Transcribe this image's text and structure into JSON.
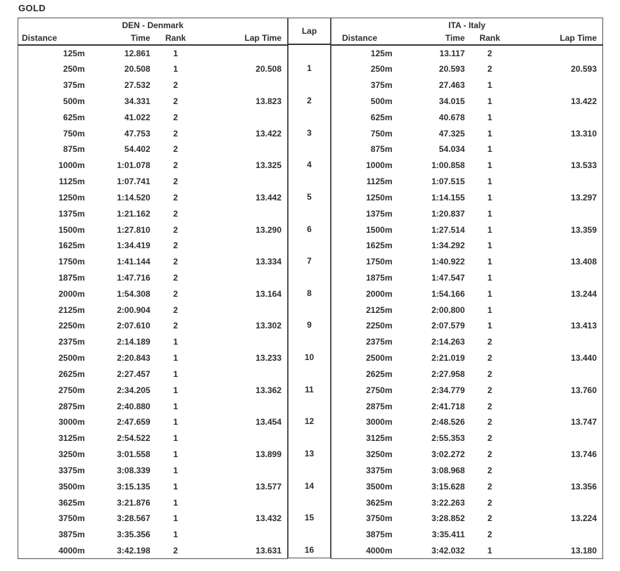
{
  "title": "GOLD",
  "left_team": {
    "name": "DEN - Denmark"
  },
  "right_team": {
    "name": "ITA - Italy"
  },
  "lap_header": "Lap",
  "columns": [
    "Distance",
    "Time",
    "Rank",
    "Lap Time"
  ],
  "rows": [
    {
      "lap": "",
      "den": [
        "125m",
        "12.861",
        "1",
        ""
      ],
      "ita": [
        "125m",
        "13.117",
        "2",
        ""
      ]
    },
    {
      "lap": "1",
      "den": [
        "250m",
        "20.508",
        "1",
        "20.508"
      ],
      "ita": [
        "250m",
        "20.593",
        "2",
        "20.593"
      ]
    },
    {
      "lap": "",
      "den": [
        "375m",
        "27.532",
        "2",
        ""
      ],
      "ita": [
        "375m",
        "27.463",
        "1",
        ""
      ]
    },
    {
      "lap": "2",
      "den": [
        "500m",
        "34.331",
        "2",
        "13.823"
      ],
      "ita": [
        "500m",
        "34.015",
        "1",
        "13.422"
      ]
    },
    {
      "lap": "",
      "den": [
        "625m",
        "41.022",
        "2",
        ""
      ],
      "ita": [
        "625m",
        "40.678",
        "1",
        ""
      ]
    },
    {
      "lap": "3",
      "den": [
        "750m",
        "47.753",
        "2",
        "13.422"
      ],
      "ita": [
        "750m",
        "47.325",
        "1",
        "13.310"
      ]
    },
    {
      "lap": "",
      "den": [
        "875m",
        "54.402",
        "2",
        ""
      ],
      "ita": [
        "875m",
        "54.034",
        "1",
        ""
      ]
    },
    {
      "lap": "4",
      "den": [
        "1000m",
        "1:01.078",
        "2",
        "13.325"
      ],
      "ita": [
        "1000m",
        "1:00.858",
        "1",
        "13.533"
      ]
    },
    {
      "lap": "",
      "den": [
        "1125m",
        "1:07.741",
        "2",
        ""
      ],
      "ita": [
        "1125m",
        "1:07.515",
        "1",
        ""
      ]
    },
    {
      "lap": "5",
      "den": [
        "1250m",
        "1:14.520",
        "2",
        "13.442"
      ],
      "ita": [
        "1250m",
        "1:14.155",
        "1",
        "13.297"
      ]
    },
    {
      "lap": "",
      "den": [
        "1375m",
        "1:21.162",
        "2",
        ""
      ],
      "ita": [
        "1375m",
        "1:20.837",
        "1",
        ""
      ]
    },
    {
      "lap": "6",
      "den": [
        "1500m",
        "1:27.810",
        "2",
        "13.290"
      ],
      "ita": [
        "1500m",
        "1:27.514",
        "1",
        "13.359"
      ]
    },
    {
      "lap": "",
      "den": [
        "1625m",
        "1:34.419",
        "2",
        ""
      ],
      "ita": [
        "1625m",
        "1:34.292",
        "1",
        ""
      ]
    },
    {
      "lap": "7",
      "den": [
        "1750m",
        "1:41.144",
        "2",
        "13.334"
      ],
      "ita": [
        "1750m",
        "1:40.922",
        "1",
        "13.408"
      ]
    },
    {
      "lap": "",
      "den": [
        "1875m",
        "1:47.716",
        "2",
        ""
      ],
      "ita": [
        "1875m",
        "1:47.547",
        "1",
        ""
      ]
    },
    {
      "lap": "8",
      "den": [
        "2000m",
        "1:54.308",
        "2",
        "13.164"
      ],
      "ita": [
        "2000m",
        "1:54.166",
        "1",
        "13.244"
      ]
    },
    {
      "lap": "",
      "den": [
        "2125m",
        "2:00.904",
        "2",
        ""
      ],
      "ita": [
        "2125m",
        "2:00.800",
        "1",
        ""
      ]
    },
    {
      "lap": "9",
      "den": [
        "2250m",
        "2:07.610",
        "2",
        "13.302"
      ],
      "ita": [
        "2250m",
        "2:07.579",
        "1",
        "13.413"
      ]
    },
    {
      "lap": "",
      "den": [
        "2375m",
        "2:14.189",
        "1",
        ""
      ],
      "ita": [
        "2375m",
        "2:14.263",
        "2",
        ""
      ]
    },
    {
      "lap": "10",
      "den": [
        "2500m",
        "2:20.843",
        "1",
        "13.233"
      ],
      "ita": [
        "2500m",
        "2:21.019",
        "2",
        "13.440"
      ]
    },
    {
      "lap": "",
      "den": [
        "2625m",
        "2:27.457",
        "1",
        ""
      ],
      "ita": [
        "2625m",
        "2:27.958",
        "2",
        ""
      ]
    },
    {
      "lap": "11",
      "den": [
        "2750m",
        "2:34.205",
        "1",
        "13.362"
      ],
      "ita": [
        "2750m",
        "2:34.779",
        "2",
        "13.760"
      ]
    },
    {
      "lap": "",
      "den": [
        "2875m",
        "2:40.880",
        "1",
        ""
      ],
      "ita": [
        "2875m",
        "2:41.718",
        "2",
        ""
      ]
    },
    {
      "lap": "12",
      "den": [
        "3000m",
        "2:47.659",
        "1",
        "13.454"
      ],
      "ita": [
        "3000m",
        "2:48.526",
        "2",
        "13.747"
      ]
    },
    {
      "lap": "",
      "den": [
        "3125m",
        "2:54.522",
        "1",
        ""
      ],
      "ita": [
        "3125m",
        "2:55.353",
        "2",
        ""
      ]
    },
    {
      "lap": "13",
      "den": [
        "3250m",
        "3:01.558",
        "1",
        "13.899"
      ],
      "ita": [
        "3250m",
        "3:02.272",
        "2",
        "13.746"
      ]
    },
    {
      "lap": "",
      "den": [
        "3375m",
        "3:08.339",
        "1",
        ""
      ],
      "ita": [
        "3375m",
        "3:08.968",
        "2",
        ""
      ]
    },
    {
      "lap": "14",
      "den": [
        "3500m",
        "3:15.135",
        "1",
        "13.577"
      ],
      "ita": [
        "3500m",
        "3:15.628",
        "2",
        "13.356"
      ]
    },
    {
      "lap": "",
      "den": [
        "3625m",
        "3:21.876",
        "1",
        ""
      ],
      "ita": [
        "3625m",
        "3:22.263",
        "2",
        ""
      ]
    },
    {
      "lap": "15",
      "den": [
        "3750m",
        "3:28.567",
        "1",
        "13.432"
      ],
      "ita": [
        "3750m",
        "3:28.852",
        "2",
        "13.224"
      ]
    },
    {
      "lap": "",
      "den": [
        "3875m",
        "3:35.356",
        "1",
        ""
      ],
      "ita": [
        "3875m",
        "3:35.411",
        "2",
        ""
      ]
    },
    {
      "lap": "16",
      "den": [
        "4000m",
        "3:42.198",
        "2",
        "13.631"
      ],
      "ita": [
        "4000m",
        "3:42.032",
        "1",
        "13.180"
      ]
    }
  ]
}
